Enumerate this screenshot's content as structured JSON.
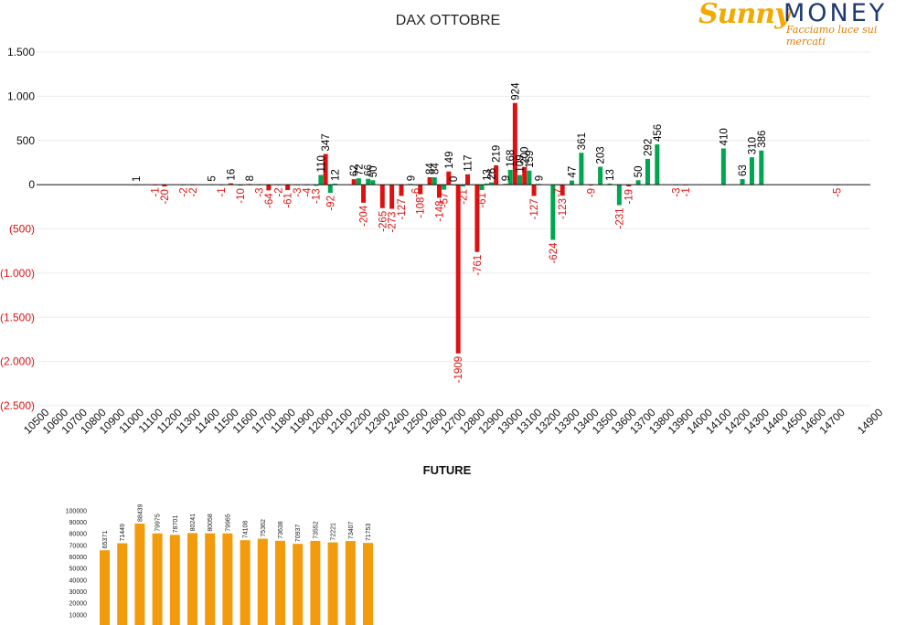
{
  "brand": {
    "logo_word_1": "Sunny",
    "logo_word_2": "MONEY",
    "tagline": "Facciamo luce sui mercati",
    "colors": {
      "orange": "#f2a900",
      "navy": "#1e3a72"
    }
  },
  "chart_data": [
    {
      "type": "bar",
      "title": "DAX OTTOBRE",
      "xlabel": "",
      "ylabel": "",
      "ylim": [
        -2500,
        1500
      ],
      "yticks": [
        1500,
        1000,
        500,
        0,
        -500,
        -1000,
        -1500,
        -2000,
        -2500
      ],
      "ytick_labels": [
        "1.500",
        "1.000",
        "500",
        "0",
        "(500)",
        "(1.000)",
        "(1.500)",
        "(2.000)",
        "(2.500)"
      ],
      "xaxis_range": [
        10500,
        14900
      ],
      "xtick_labels": [
        "10500",
        "10600",
        "10700",
        "10800",
        "10900",
        "11000",
        "11100",
        "11200",
        "11300",
        "11400",
        "11500",
        "11600",
        "11700",
        "11800",
        "11900",
        "12000",
        "12100",
        "12200",
        "12300",
        "12400",
        "12500",
        "12600",
        "12700",
        "12800",
        "12900",
        "13000",
        "13100",
        "13200",
        "13300",
        "13400",
        "13500",
        "13600",
        "13700",
        "13800",
        "13900",
        "14000",
        "14100",
        "14200",
        "14300",
        "14400",
        "14500",
        "14600",
        "14700",
        "14900"
      ],
      "grid": true,
      "colors": {
        "call": "#00a550",
        "put": "#dd1111",
        "positive_label": "#000000",
        "negative_label": "#dd1111"
      },
      "series": [
        {
          "color_key": "put",
          "x": [
            11000,
            11100,
            11150,
            11300,
            11500,
            11600,
            11700,
            11800,
            11900,
            12000,
            12150,
            12200,
            12300,
            12350,
            12400,
            12500,
            12550,
            12600,
            12650,
            12700,
            12750,
            12800,
            12900,
            12950,
            13000,
            13050,
            13100,
            13250,
            13400,
            13600,
            13900
          ],
          "values": [
            1,
            -1,
            -20,
            -2,
            16,
            8,
            -64,
            -61,
            -4,
            347,
            62,
            -204,
            -265,
            -273,
            -127,
            -108,
            84,
            -148,
            149,
            -1909,
            117,
            -761,
            219,
            9,
            924,
            200,
            -127,
            -123,
            -9,
            -19,
            -1
          ]
        },
        {
          "color_key": "call",
          "x": [
            11250,
            11400,
            11450,
            11550,
            11650,
            11750,
            11850,
            11950,
            11975,
            12025,
            12050,
            12175,
            12225,
            12250,
            12450,
            12475,
            12575,
            12625,
            12675,
            12725,
            12825,
            12850,
            12875,
            12975,
            13025,
            13075,
            13125,
            13200,
            13225,
            13300,
            13350,
            13450,
            13500,
            13550,
            13650,
            13700,
            13750,
            13850,
            14100,
            14200,
            14250,
            14300,
            14700
          ],
          "values": [
            -2,
            5,
            -1,
            -10,
            -3,
            -2,
            -3,
            -13,
            110,
            -92,
            12,
            72,
            66,
            50,
            9,
            -6,
            84,
            -57,
            0,
            -21,
            -61,
            13,
            26,
            168,
            109,
            159,
            9,
            -624,
            -7,
            47,
            361,
            203,
            13,
            -231,
            50,
            292,
            456,
            -3,
            410,
            63,
            310,
            386,
            -5
          ]
        }
      ]
    },
    {
      "type": "bar",
      "title": "FUTURE",
      "xlabel": "",
      "ylabel": "",
      "ylim": [
        0,
        100000
      ],
      "yticks": [
        10000,
        20000,
        30000,
        40000,
        50000,
        60000,
        70000,
        80000,
        90000,
        100000
      ],
      "color": "#f29b0c",
      "values": [
        65371,
        71449,
        88439,
        79975,
        78701,
        80241,
        80058,
        79965,
        74108,
        75362,
        73638,
        70937,
        73552,
        72221,
        73407,
        71753
      ]
    }
  ]
}
